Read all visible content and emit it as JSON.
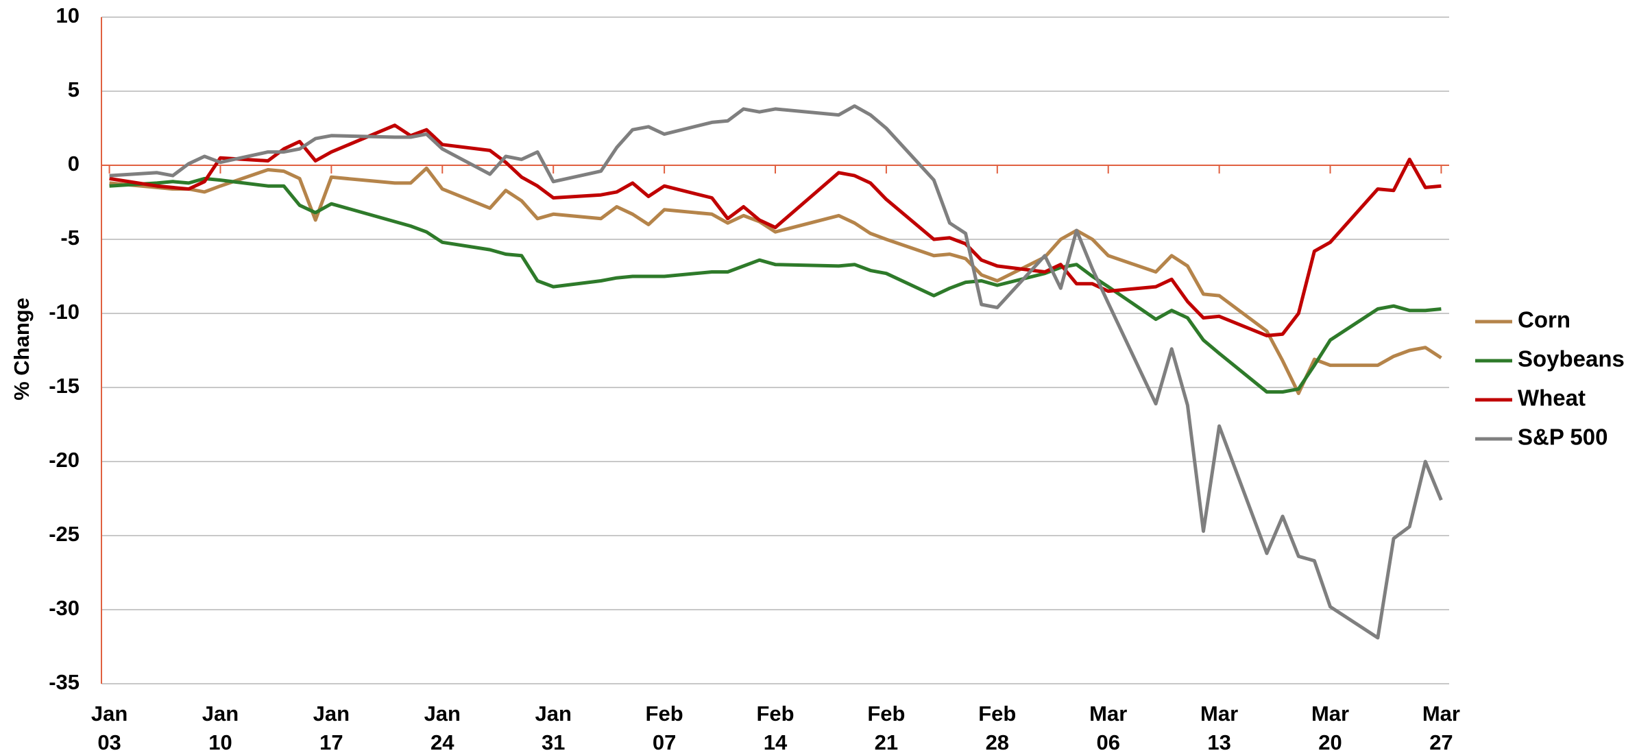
{
  "chart_data": {
    "type": "line",
    "y_label": "% Change",
    "x": [
      "Jan 03",
      "Jan 06",
      "Jan 07",
      "Jan 08",
      "Jan 09",
      "Jan 10",
      "Jan 13",
      "Jan 14",
      "Jan 15",
      "Jan 16",
      "Jan 17",
      "Jan 21",
      "Jan 22",
      "Jan 23",
      "Jan 24",
      "Jan 27",
      "Jan 28",
      "Jan 29",
      "Jan 30",
      "Jan 31",
      "Feb 03",
      "Feb 04",
      "Feb 05",
      "Feb 06",
      "Feb 07",
      "Feb 10",
      "Feb 11",
      "Feb 12",
      "Feb 13",
      "Feb 14",
      "Feb 18",
      "Feb 19",
      "Feb 20",
      "Feb 21",
      "Feb 24",
      "Feb 25",
      "Feb 26",
      "Feb 27",
      "Feb 28",
      "Mar 02",
      "Mar 03",
      "Mar 04",
      "Mar 05",
      "Mar 06",
      "Mar 09",
      "Mar 10",
      "Mar 11",
      "Mar 12",
      "Mar 13",
      "Mar 16",
      "Mar 17",
      "Mar 18",
      "Mar 19",
      "Mar 20",
      "Mar 23",
      "Mar 24",
      "Mar 25",
      "Mar 26",
      "Mar 27"
    ],
    "xticks": [
      "Jan 03",
      "Jan 10",
      "Jan 17",
      "Jan 24",
      "Jan 31",
      "Feb 07",
      "Feb 14",
      "Feb 21",
      "Feb 28",
      "Mar 06",
      "Mar 13",
      "Mar 20",
      "Mar 27"
    ],
    "series": [
      {
        "name": "Corn",
        "color": "#b5844a",
        "values": [
          -1.2,
          -1.5,
          -1.6,
          -1.6,
          -1.8,
          -1.4,
          -0.3,
          -0.4,
          -0.9,
          -3.7,
          -0.8,
          -1.2,
          -1.2,
          -0.2,
          -1.6,
          -2.9,
          -1.7,
          -2.4,
          -3.6,
          -3.3,
          -3.6,
          -2.8,
          -3.3,
          -4.0,
          -3.0,
          -3.3,
          -3.9,
          -3.4,
          -3.8,
          -4.5,
          -3.4,
          -3.9,
          -4.6,
          -5.0,
          -6.1,
          -6.0,
          -6.3,
          -7.4,
          -7.8,
          -6.2,
          -5.0,
          -4.4,
          -5.0,
          -6.1,
          -7.2,
          -6.1,
          -6.8,
          -8.7,
          -8.8,
          -11.2,
          -13.2,
          -15.4,
          -13.1,
          -13.5,
          -13.5,
          -12.9,
          -12.5,
          -12.3,
          -13.0
        ]
      },
      {
        "name": "Soybeans",
        "color": "#2e7a2a",
        "values": [
          -1.4,
          -1.2,
          -1.1,
          -1.2,
          -0.9,
          -1.0,
          -1.4,
          -1.4,
          -2.7,
          -3.2,
          -2.6,
          -3.8,
          -4.1,
          -4.5,
          -5.2,
          -5.7,
          -6.0,
          -6.1,
          -7.8,
          -8.2,
          -7.8,
          -7.6,
          -7.5,
          -7.5,
          -7.5,
          -7.2,
          -7.2,
          -6.8,
          -6.4,
          -6.7,
          -6.8,
          -6.7,
          -7.1,
          -7.3,
          -8.8,
          -8.3,
          -7.9,
          -7.8,
          -8.1,
          -7.3,
          -6.9,
          -6.7,
          -7.5,
          -8.2,
          -10.4,
          -9.8,
          -10.3,
          -11.8,
          -12.7,
          -15.3,
          -15.3,
          -15.1,
          -13.5,
          -11.8,
          -9.7,
          -9.5,
          -9.8,
          -9.8,
          -9.7
        ]
      },
      {
        "name": "Wheat",
        "color": "#c00000",
        "values": [
          -0.9,
          -1.4,
          -1.5,
          -1.6,
          -1.1,
          0.5,
          0.3,
          1.1,
          1.6,
          0.3,
          0.9,
          2.7,
          2.0,
          2.4,
          1.4,
          1.0,
          0.2,
          -0.8,
          -1.4,
          -2.2,
          -2.0,
          -1.8,
          -1.2,
          -2.1,
          -1.4,
          -2.2,
          -3.6,
          -2.8,
          -3.7,
          -4.2,
          -0.5,
          -0.7,
          -1.2,
          -2.3,
          -5.0,
          -4.9,
          -5.3,
          -6.4,
          -6.8,
          -7.2,
          -6.7,
          -8.0,
          -8.0,
          -8.5,
          -8.2,
          -7.7,
          -9.2,
          -10.3,
          -10.2,
          -11.5,
          -11.4,
          -10.0,
          -5.8,
          -5.2,
          -1.6,
          -1.7,
          0.4,
          -1.5,
          -1.4
        ]
      },
      {
        "name": "S&P 500",
        "color": "#7f7f7f",
        "values": [
          -0.7,
          -0.5,
          -0.7,
          0.1,
          0.6,
          0.2,
          0.9,
          0.9,
          1.1,
          1.8,
          2.0,
          1.9,
          1.9,
          2.1,
          1.1,
          -0.6,
          0.6,
          0.4,
          0.9,
          -1.1,
          -0.4,
          1.2,
          2.4,
          2.6,
          2.1,
          2.9,
          3.0,
          3.8,
          3.6,
          3.8,
          3.4,
          4.0,
          3.4,
          2.5,
          -1.0,
          -3.9,
          -4.6,
          -9.4,
          -9.6,
          -6.1,
          -8.3,
          -4.4,
          -7.0,
          -9.3,
          -16.1,
          -12.4,
          -16.2,
          -24.7,
          -17.6,
          -26.2,
          -23.7,
          -26.4,
          -26.7,
          -29.8,
          -31.9,
          -25.2,
          -24.4,
          -20.0,
          -22.6
        ]
      }
    ],
    "ylim": [
      -35,
      10
    ],
    "yticks": [
      -35,
      -30,
      -25,
      -20,
      -15,
      -10,
      -5,
      0,
      5,
      10
    ],
    "grid": true,
    "legend": "right"
  }
}
